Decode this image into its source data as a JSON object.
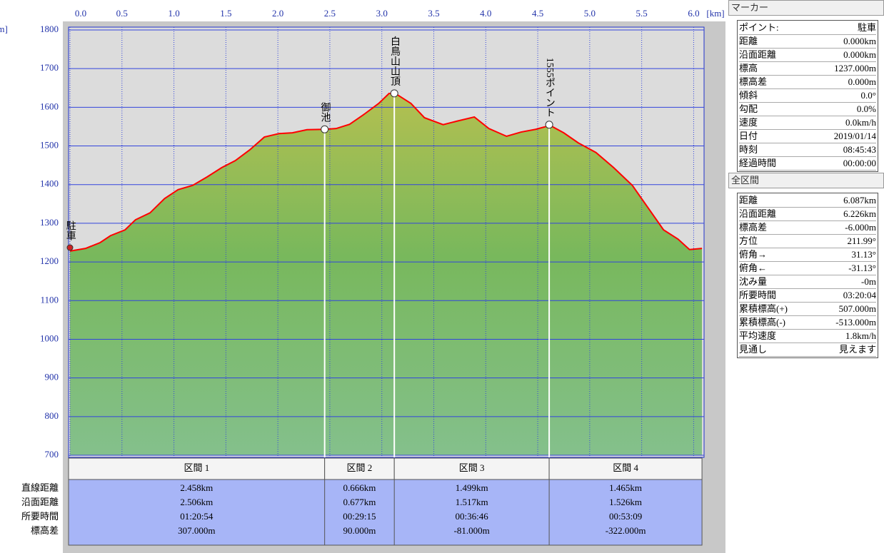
{
  "chart_data": {
    "type": "area",
    "x_unit": "[km]",
    "y_unit": "[m]",
    "x": [
      0,
      0.15,
      0.29,
      0.39,
      0.53,
      0.63,
      0.77,
      0.91,
      1.04,
      1.18,
      1.32,
      1.46,
      1.59,
      1.73,
      1.87,
      2.01,
      2.14,
      2.28,
      2.45,
      2.56,
      2.69,
      2.83,
      2.97,
      3.07,
      3.14,
      3.28,
      3.41,
      3.59,
      3.72,
      3.89,
      4.03,
      4.2,
      4.34,
      4.48,
      4.62,
      4.75,
      4.89,
      5.06,
      5.23,
      5.41,
      5.58,
      5.71,
      5.85,
      5.96,
      6.08
    ],
    "y": [
      1228,
      1235,
      1250,
      1268,
      1283,
      1309,
      1327,
      1364,
      1387,
      1398,
      1420,
      1444,
      1462,
      1490,
      1523,
      1532,
      1534,
      1542,
      1543,
      1545,
      1556,
      1582,
      1610,
      1636,
      1634,
      1610,
      1573,
      1555,
      1564,
      1575,
      1545,
      1525,
      1536,
      1543,
      1553,
      1534,
      1508,
      1483,
      1444,
      1398,
      1333,
      1283,
      1259,
      1232,
      1235
    ],
    "xlim": [
      0,
      6.1
    ],
    "ylim": [
      700,
      1800
    ],
    "xticks": [
      {
        "value": 0,
        "label": "0.0"
      },
      0.5,
      {
        "value": 1,
        "label": "1.0"
      },
      1.5,
      {
        "value": 2,
        "label": "2.0"
      },
      2.5,
      {
        "value": 3,
        "label": "3.0"
      },
      3.5,
      {
        "value": 4,
        "label": "4.0"
      },
      4.5,
      {
        "value": 5,
        "label": "5.0"
      },
      5.5,
      {
        "value": 6,
        "label": "6.0"
      }
    ],
    "yticks": [
      700,
      800,
      900,
      1000,
      1100,
      1200,
      1300,
      1400,
      1500,
      1600,
      1700,
      1800
    ],
    "grid": true,
    "line_color": "#ff0000",
    "waypoints": [
      {
        "name": "駐車",
        "x": 0,
        "y": 1237
      },
      {
        "name": "御池",
        "x": 2.45,
        "y": 1543
      },
      {
        "name": "白鳥山山頂",
        "x": 3.12,
        "y": 1636
      },
      {
        "name": "1555ポイント",
        "x": 4.61,
        "y": 1555
      }
    ]
  },
  "segments": {
    "row_labels": [
      "直線距離",
      "沿面距離",
      "所要時間",
      "標高差"
    ],
    "columns": [
      {
        "header": "区間 1",
        "values": [
          "2.458km",
          "2.506km",
          "01:20:54",
          "307.000m"
        ]
      },
      {
        "header": "区間 2",
        "values": [
          "0.666km",
          "0.677km",
          "00:29:15",
          "90.000m"
        ]
      },
      {
        "header": "区間 3",
        "values": [
          "1.499km",
          "1.517km",
          "00:36:46",
          "-81.000m"
        ]
      },
      {
        "header": "区間 4",
        "values": [
          "1.465km",
          "1.526km",
          "00:53:09",
          "-322.000m"
        ]
      }
    ]
  },
  "marker_panel": {
    "title": "マーカー",
    "rows": [
      [
        "ポイント:",
        "駐車"
      ],
      [
        "距離",
        "0.000km"
      ],
      [
        "沿面距離",
        "0.000km"
      ],
      [
        "標高",
        "1237.000m"
      ],
      [
        "標高差",
        "0.000m"
      ],
      [
        "傾斜",
        "0.0°"
      ],
      [
        "勾配",
        "0.0%"
      ],
      [
        "速度",
        "0.0km/h"
      ],
      [
        "日付",
        "2019/01/14"
      ],
      [
        "時刻",
        "08:45:43"
      ],
      [
        "経過時間",
        "00:00:00"
      ]
    ]
  },
  "summary_panel": {
    "title": "全区間",
    "rows": [
      [
        "距離",
        "6.087km"
      ],
      [
        "沿面距離",
        "6.226km"
      ],
      [
        "標高差",
        "-6.000m"
      ],
      [
        "方位",
        "211.99°"
      ],
      [
        "俯角→",
        "31.13°"
      ],
      [
        "俯角←",
        "-31.13°"
      ],
      [
        "沈み量",
        "-0m"
      ],
      [
        "所要時間",
        "03:20:04"
      ],
      [
        "累積標高(+)",
        "507.000m"
      ],
      [
        "累積標高(-)",
        "-513.000m"
      ],
      [
        "平均速度",
        "1.8km/h"
      ],
      [
        "見通し",
        "見えます"
      ]
    ]
  }
}
